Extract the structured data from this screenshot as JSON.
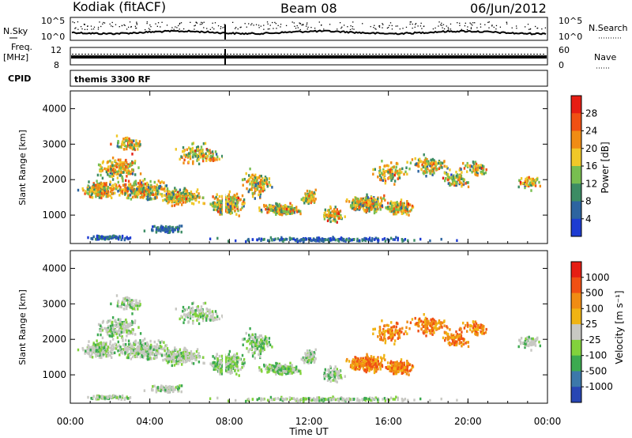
{
  "header": {
    "station": "Kodiak (fitACF)",
    "beam": "Beam 08",
    "date": "06/Jun/2012"
  },
  "top_panels": {
    "nsky_label": "N.Sky",
    "nsky_ticks_left": [
      "10^5",
      "10^0"
    ],
    "nsearch_label": "N.Search",
    "nsearch_ticks_right": [
      "10^5",
      "10^0"
    ],
    "freq_label_1": "Freq.",
    "freq_label_2": "[MHz]",
    "freq_ticks_left": [
      "12",
      "8"
    ],
    "nave_label": "Nave",
    "nave_ticks_right": [
      "60",
      "0"
    ],
    "cpid_label": "CPID",
    "cpid_text": "themis 3300 RF"
  },
  "chart_data": [
    {
      "type": "heatmap",
      "name": "power",
      "ylabel": "Slant Range [km]",
      "y_ticks": [
        "1000",
        "2000",
        "3000",
        "4000"
      ],
      "ylim": [
        200,
        4500
      ],
      "colorbar_title": "Power [dB]",
      "colorbar_ticks": [
        "4",
        "8",
        "12",
        "16",
        "20",
        "24",
        "28"
      ],
      "colors": [
        "#1e3cd2",
        "#2d64a0",
        "#3c8c64",
        "#78be50",
        "#f0c828",
        "#f08c14",
        "#f05014",
        "#e61e14"
      ]
    },
    {
      "type": "heatmap",
      "name": "velocity",
      "ylabel": "Slant Range [km]",
      "y_ticks": [
        "1000",
        "2000",
        "3000",
        "4000"
      ],
      "ylim": [
        200,
        4500
      ],
      "colorbar_title": "Velocity [m s⁻¹]",
      "colorbar_ticks": [
        "1000",
        "500",
        "100",
        "25",
        "-25",
        "-100",
        "-500",
        "-1000"
      ],
      "colors": [
        "#2846b4",
        "#3c78aa",
        "#3caa50",
        "#82d23c",
        "#c8c8c3",
        "#f0b414",
        "#f08c14",
        "#f05014",
        "#e61e14"
      ]
    }
  ],
  "x_axis": {
    "ticks": [
      "00:00",
      "04:00",
      "08:00",
      "12:00",
      "16:00",
      "20:00",
      "00:00"
    ],
    "label": "Time UT"
  }
}
